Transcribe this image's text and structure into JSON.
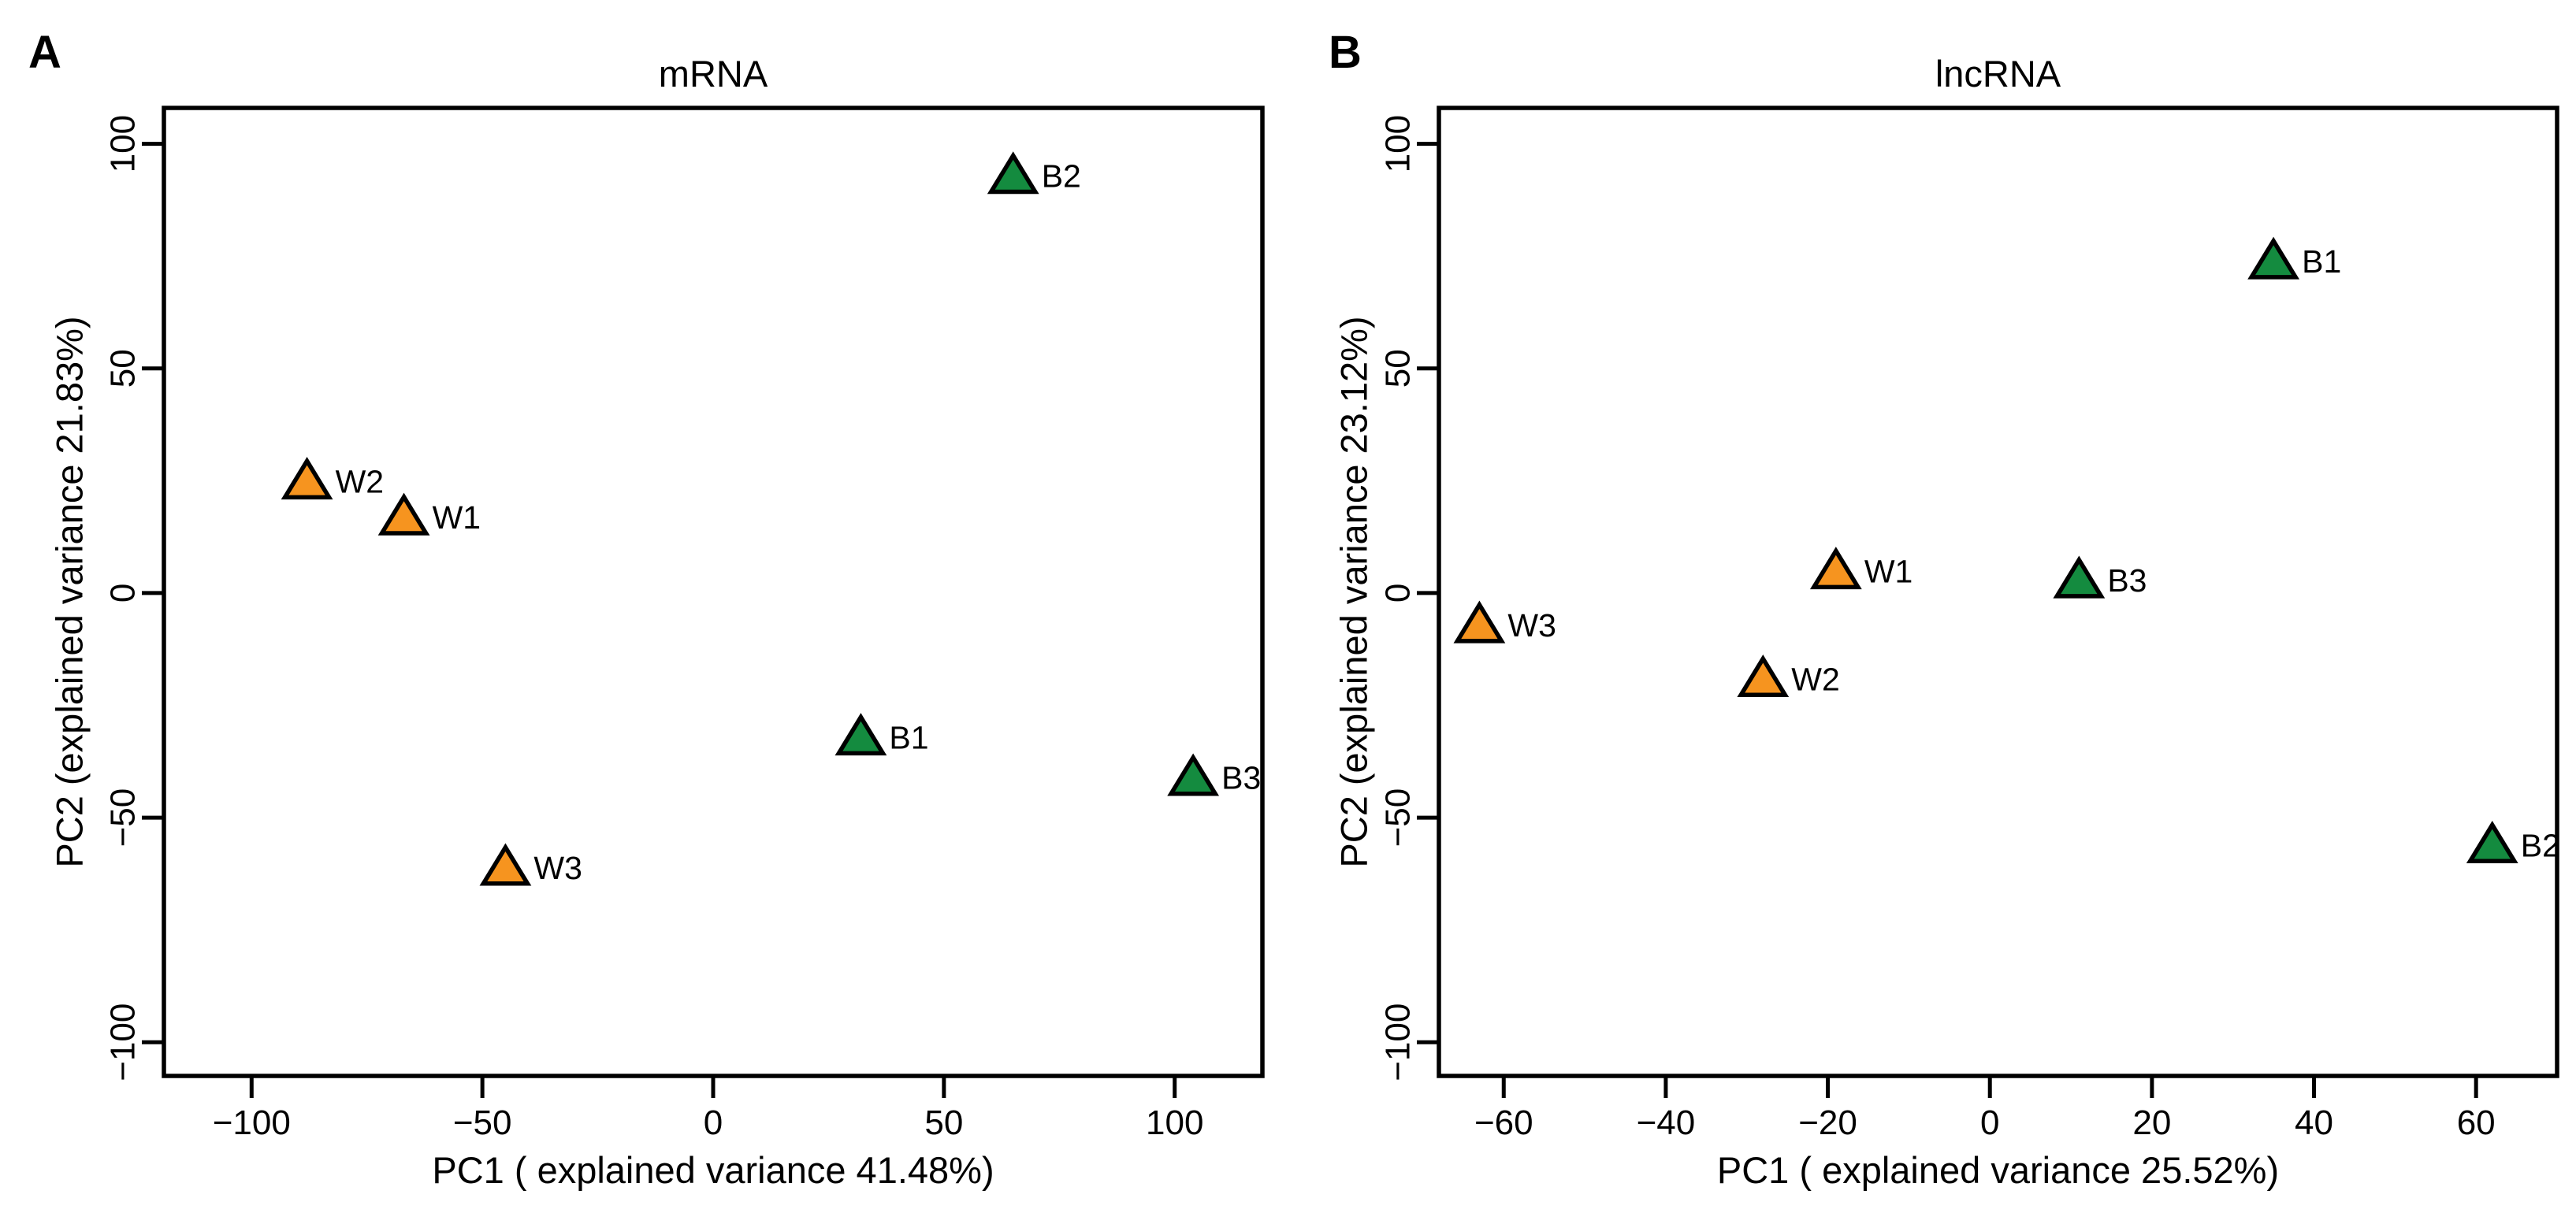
{
  "figure": {
    "background": "#ffffff",
    "text_color": "#000000",
    "marker_outline": "#000000",
    "group_colors": {
      "W": "#F6941F",
      "B": "#148B3F"
    }
  },
  "chart_data": [
    {
      "type": "scatter",
      "panel_label": "A",
      "title": "mRNA",
      "xlabel": "PC1 ( explained variance 41.48%)",
      "ylabel": "PC2 (explained variance 21.83%)",
      "xlim": [
        -119,
        119
      ],
      "ylim": [
        -107.5,
        108
      ],
      "x_ticks": [
        -100,
        -50,
        0,
        50,
        100
      ],
      "y_ticks": [
        -100,
        -50,
        0,
        50,
        100
      ],
      "grid": false,
      "legend": "none",
      "marker": "triangle-up",
      "series": [
        {
          "name": "W",
          "color": "#F6941F",
          "points": [
            {
              "label": "W1",
              "x": -67,
              "y": 17
            },
            {
              "label": "W2",
              "x": -88,
              "y": 25
            },
            {
              "label": "W3",
              "x": -45,
              "y": -61
            }
          ]
        },
        {
          "name": "B",
          "color": "#148B3F",
          "points": [
            {
              "label": "B1",
              "x": 32,
              "y": -32
            },
            {
              "label": "B2",
              "x": 65,
              "y": 93
            },
            {
              "label": "B3",
              "x": 104,
              "y": -41
            }
          ]
        }
      ]
    },
    {
      "type": "scatter",
      "panel_label": "B",
      "title": "lncRNA",
      "xlabel": "PC1 ( explained variance 25.52%)",
      "ylabel": "PC2 (explained variance 23.12%)",
      "xlim": [
        -68,
        70
      ],
      "ylim": [
        -107.5,
        108
      ],
      "x_ticks": [
        -60,
        -40,
        -20,
        0,
        20,
        40,
        60
      ],
      "y_ticks": [
        -100,
        -50,
        0,
        50,
        100
      ],
      "grid": false,
      "legend": "none",
      "marker": "triangle-up",
      "series": [
        {
          "name": "W",
          "color": "#F6941F",
          "points": [
            {
              "label": "W1",
              "x": -19,
              "y": 5
            },
            {
              "label": "W2",
              "x": -28,
              "y": -19
            },
            {
              "label": "W3",
              "x": -63,
              "y": -7
            }
          ]
        },
        {
          "name": "B",
          "color": "#148B3F",
          "points": [
            {
              "label": "B1",
              "x": 35,
              "y": 74
            },
            {
              "label": "B2",
              "x": 62,
              "y": -56
            },
            {
              "label": "B3",
              "x": 11,
              "y": 3
            }
          ]
        }
      ]
    }
  ]
}
